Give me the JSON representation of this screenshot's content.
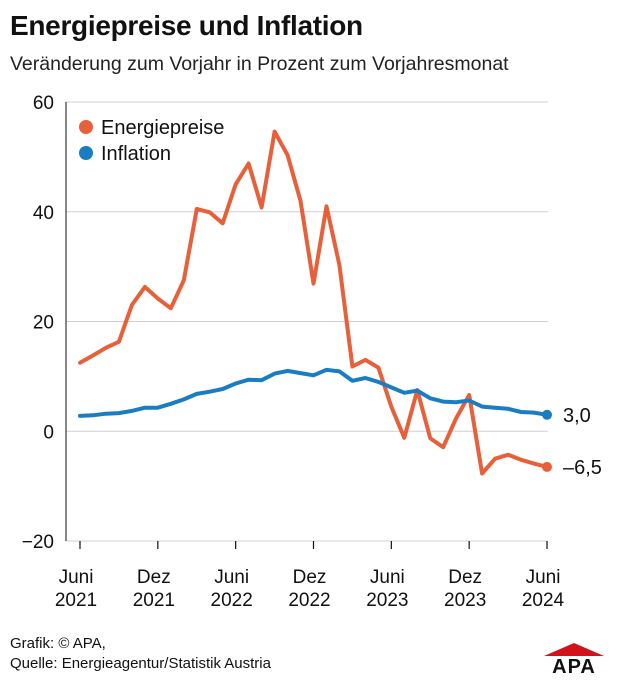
{
  "header": {
    "title": "Energiepreise und Inflation",
    "subtitle": "Veränderung zum Vorjahr in Prozent zum Vorjahresmonat"
  },
  "footer": {
    "credit": "Grafik: © APA,",
    "source": "Quelle: Energieagentur/Statistik Austria"
  },
  "logo": {
    "text": "APA",
    "color": "#d1121b"
  },
  "colors": {
    "energy": "#e8603a",
    "inflation": "#1a7dc2",
    "grid": "#d0d0d0",
    "axis": "#111111"
  },
  "chart_data": {
    "type": "line",
    "title": "Energiepreise und Inflation",
    "subtitle": "Veränderung zum Vorjahr in Prozent zum Vorjahresmonat",
    "x": [
      "2021-06",
      "2021-07",
      "2021-08",
      "2021-09",
      "2021-10",
      "2021-11",
      "2021-12",
      "2022-01",
      "2022-02",
      "2022-03",
      "2022-04",
      "2022-05",
      "2022-06",
      "2022-07",
      "2022-08",
      "2022-09",
      "2022-10",
      "2022-11",
      "2022-12",
      "2023-01",
      "2023-02",
      "2023-03",
      "2023-04",
      "2023-05",
      "2023-06",
      "2023-07",
      "2023-08",
      "2023-09",
      "2023-10",
      "2023-11",
      "2023-12",
      "2024-01",
      "2024-02",
      "2024-03",
      "2024-04",
      "2024-05",
      "2024-06"
    ],
    "xticks": [
      {
        "x": "2021-06",
        "line1": "Juni",
        "line2": "2021"
      },
      {
        "x": "2021-12",
        "line1": "Dez",
        "line2": "2021"
      },
      {
        "x": "2022-06",
        "line1": "Juni",
        "line2": "2022"
      },
      {
        "x": "2022-12",
        "line1": "Dez",
        "line2": "2022"
      },
      {
        "x": "2023-06",
        "line1": "Juni",
        "line2": "2023"
      },
      {
        "x": "2023-12",
        "line1": "Dez",
        "line2": "2023"
      },
      {
        "x": "2024-06",
        "line1": "Juni",
        "line2": "2024"
      }
    ],
    "yticks": [
      60,
      40,
      20,
      0,
      -20
    ],
    "ylim": [
      -20,
      60
    ],
    "grid": true,
    "legend_position": "top-left",
    "series": [
      {
        "name": "Energiepreise",
        "color": "#e8603a",
        "end_label": "–6,5",
        "values": [
          12.5,
          13.8,
          15.2,
          16.3,
          23.0,
          26.3,
          24.2,
          22.4,
          27.5,
          40.5,
          39.9,
          37.9,
          45.0,
          48.8,
          40.8,
          54.6,
          50.3,
          42.0,
          26.9,
          41.0,
          30.3,
          11.8,
          13.0,
          11.6,
          4.5,
          -1.2,
          7.5,
          -1.3,
          -2.9,
          2.4,
          6.6,
          -7.7,
          -5.0,
          -4.3,
          -5.2,
          -5.9,
          -6.5
        ]
      },
      {
        "name": "Inflation",
        "color": "#1a7dc2",
        "end_label": "3,0",
        "values": [
          2.8,
          2.9,
          3.2,
          3.3,
          3.7,
          4.3,
          4.3,
          5.0,
          5.8,
          6.8,
          7.2,
          7.7,
          8.7,
          9.4,
          9.3,
          10.5,
          11.0,
          10.6,
          10.2,
          11.2,
          10.9,
          9.2,
          9.7,
          9.0,
          8.0,
          7.0,
          7.4,
          6.0,
          5.4,
          5.3,
          5.6,
          4.5,
          4.3,
          4.1,
          3.5,
          3.4,
          3.0
        ]
      }
    ]
  }
}
